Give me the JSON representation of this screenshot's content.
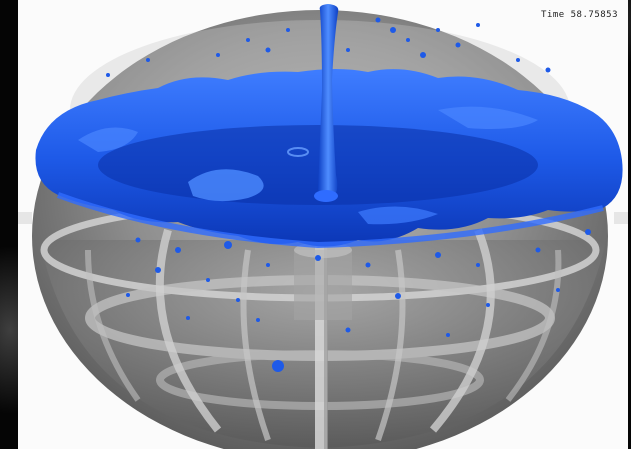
{
  "timestamp_label": "Time 58.75853",
  "colors": {
    "fluid": "#1e5ae8",
    "fluid_dark": "#0a2fa6",
    "sphere_shell": "#8c8c8c",
    "background": "#000000",
    "panel": "#fbfbfb"
  }
}
